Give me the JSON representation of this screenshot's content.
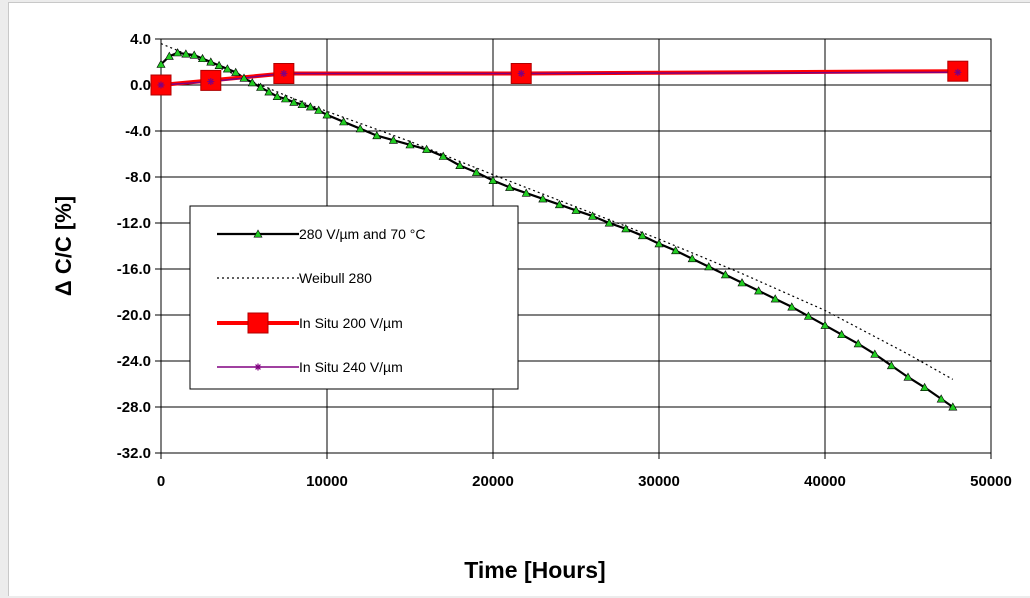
{
  "chart_data": {
    "type": "line",
    "title": "",
    "xlabel": "Time [Hours]",
    "ylabel": "Δ C/C [%]",
    "xlim": [
      0,
      50000
    ],
    "ylim": [
      -32,
      4
    ],
    "x_ticks": [
      "0",
      "10000",
      "20000",
      "30000",
      "40000",
      "50000"
    ],
    "y_ticks": [
      "4.0",
      "0.0",
      "-4.0",
      "-8.0",
      "-12.0",
      "-16.0",
      "-20.0",
      "-24.0",
      "-28.0",
      "-32.0"
    ],
    "grid": true,
    "legend_position": "left-center",
    "series": [
      {
        "name": "280 V/µm and 70 °C",
        "color": "#000000",
        "marker": "triangle",
        "marker_color": "#22cc22",
        "x": [
          0,
          500,
          1000,
          1500,
          2000,
          2500,
          3000,
          3500,
          4000,
          4500,
          5000,
          5500,
          6000,
          6500,
          7000,
          7500,
          8000,
          8500,
          9000,
          9500,
          10000,
          11000,
          12000,
          13000,
          14000,
          15000,
          16000,
          17000,
          18000,
          19000,
          20000,
          21000,
          22000,
          23000,
          24000,
          25000,
          26000,
          27000,
          28000,
          29000,
          30000,
          31000,
          32000,
          33000,
          34000,
          35000,
          36000,
          37000,
          38000,
          39000,
          40000,
          41000,
          42000,
          43000,
          44000,
          45000,
          46000,
          47000,
          47700
        ],
        "y": [
          1.8,
          2.5,
          2.8,
          2.7,
          2.6,
          2.3,
          2.0,
          1.7,
          1.4,
          1.1,
          0.6,
          0.2,
          -0.2,
          -0.6,
          -1.0,
          -1.2,
          -1.5,
          -1.7,
          -1.9,
          -2.2,
          -2.6,
          -3.2,
          -3.8,
          -4.4,
          -4.8,
          -5.2,
          -5.6,
          -6.2,
          -7.0,
          -7.6,
          -8.3,
          -8.9,
          -9.4,
          -9.9,
          -10.4,
          -10.9,
          -11.4,
          -12.0,
          -12.5,
          -13.1,
          -13.8,
          -14.4,
          -15.1,
          -15.8,
          -16.5,
          -17.2,
          -17.9,
          -18.6,
          -19.3,
          -20.1,
          -20.9,
          -21.7,
          -22.5,
          -23.4,
          -24.4,
          -25.4,
          -26.3,
          -27.3,
          -28.0
        ]
      },
      {
        "name": "Weibull 280",
        "color": "#000000",
        "style": "dotted",
        "x": [
          0,
          2000,
          4000,
          6000,
          8000,
          10000,
          15000,
          20000,
          25000,
          30000,
          35000,
          40000,
          45000,
          47700
        ],
        "y": [
          3.6,
          2.4,
          1.2,
          0.0,
          -1.2,
          -2.3,
          -4.9,
          -7.8,
          -10.6,
          -13.4,
          -16.4,
          -19.6,
          -23.4,
          -25.6
        ]
      },
      {
        "name": "In Situ 200 V/µm",
        "color": "#ff0000",
        "marker": "square",
        "x": [
          0,
          3000,
          7400,
          21700,
          48000
        ],
        "y": [
          0.0,
          0.4,
          1.0,
          1.0,
          1.2
        ]
      },
      {
        "name": "In Situ 240 V/µm",
        "color": "#800080",
        "marker": "star",
        "x": [
          0,
          3000,
          7400,
          21700,
          48000
        ],
        "y": [
          0.0,
          0.3,
          1.0,
          1.0,
          1.1
        ]
      }
    ]
  }
}
